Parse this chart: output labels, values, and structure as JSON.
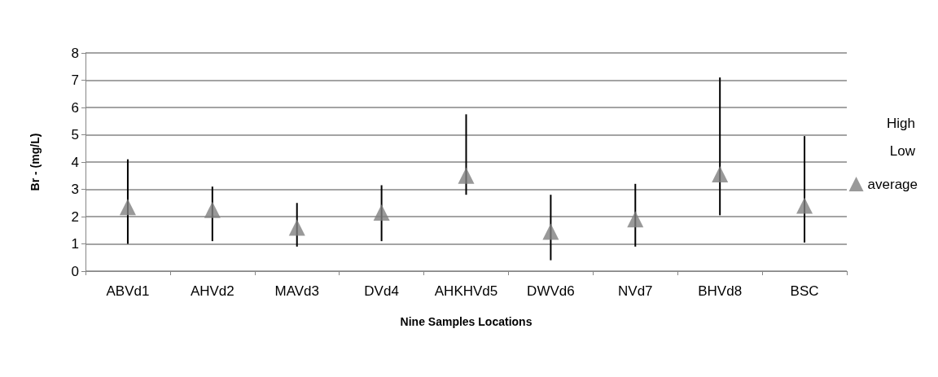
{
  "chart_data": {
    "type": "scatter",
    "xlabel": "Nine Samples Locations",
    "ylabel": "Br - (mg/L)",
    "categories": [
      "ABVd1",
      "AHVd2",
      "MAVd3",
      "DVd4",
      "AHKHVd5",
      "DWVd6",
      "NVd7",
      "BHVd8",
      "BSC"
    ],
    "series": [
      {
        "name": "average",
        "color": "#808080",
        "marker": "triangle",
        "values": [
          2.35,
          2.25,
          1.6,
          2.15,
          3.5,
          1.45,
          1.9,
          3.55,
          2.4
        ],
        "errors": [
          [
            1.0,
            4.1
          ],
          [
            1.1,
            3.1
          ],
          [
            0.9,
            2.5
          ],
          [
            1.1,
            3.15
          ],
          [
            2.8,
            5.75
          ],
          [
            0.4,
            2.8
          ],
          [
            0.9,
            3.2
          ],
          [
            2.05,
            7.1
          ],
          [
            1.05,
            4.95
          ]
        ]
      }
    ],
    "annotations": [
      "High",
      "Low"
    ],
    "ylim": [
      0,
      8
    ],
    "yticks": [
      0,
      1,
      2,
      3,
      4,
      5,
      6,
      7,
      8
    ],
    "grid": "y",
    "legend": "right"
  }
}
